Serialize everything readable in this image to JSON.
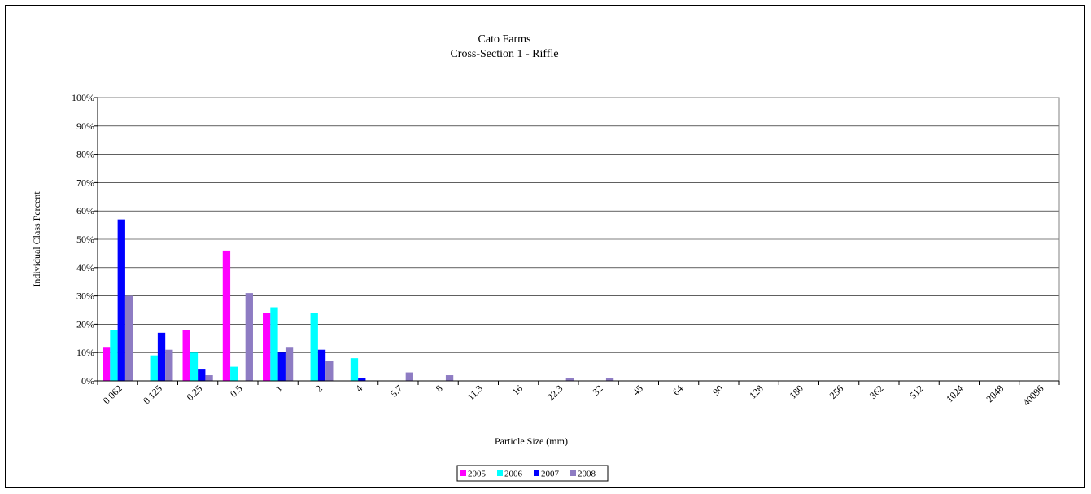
{
  "chart_data": {
    "type": "bar",
    "title": "Cato Farms",
    "subtitle": "Cross-Section 1 - Riffle",
    "xlabel": "Particle Size (mm)",
    "ylabel": "Individual Class Percent",
    "ylim": [
      0,
      100
    ],
    "yticks": [
      "0%",
      "10%",
      "20%",
      "30%",
      "40%",
      "50%",
      "60%",
      "70%",
      "80%",
      "90%",
      "100%"
    ],
    "grid": true,
    "legend_position": "bottom",
    "categories": [
      "0.062",
      "0.125",
      "0.25",
      "0.5",
      "1",
      "2",
      "4",
      "5.7",
      "8",
      "11.3",
      "16",
      "22.3",
      "32",
      "45",
      "64",
      "90",
      "128",
      "180",
      "256",
      "362",
      "512",
      "1024",
      "2048",
      "40096"
    ],
    "series": [
      {
        "name": "2005",
        "color": "#ff00ff",
        "values": [
          12,
          0,
          18,
          46,
          24,
          0,
          0,
          0,
          0,
          0,
          0,
          0,
          0,
          0,
          0,
          0,
          0,
          0,
          0,
          0,
          0,
          0,
          0,
          0
        ]
      },
      {
        "name": "2006",
        "color": "#00ffff",
        "values": [
          18,
          9,
          10,
          5,
          26,
          24,
          8,
          0,
          0,
          0,
          0,
          0,
          0,
          0,
          0,
          0,
          0,
          0,
          0,
          0,
          0,
          0,
          0,
          0
        ]
      },
      {
        "name": "2007",
        "color": "#0000ff",
        "values": [
          57,
          17,
          4,
          0,
          10,
          11,
          1,
          0,
          0,
          0,
          0,
          0,
          0,
          0,
          0,
          0,
          0,
          0,
          0,
          0,
          0,
          0,
          0,
          0
        ]
      },
      {
        "name": "2008",
        "color": "#8e7cc3",
        "values": [
          30,
          11,
          2,
          31,
          12,
          7,
          0,
          3,
          2,
          0,
          0,
          1,
          1,
          0,
          0,
          0,
          0,
          0,
          0,
          0,
          0,
          0,
          0,
          0
        ]
      }
    ]
  }
}
